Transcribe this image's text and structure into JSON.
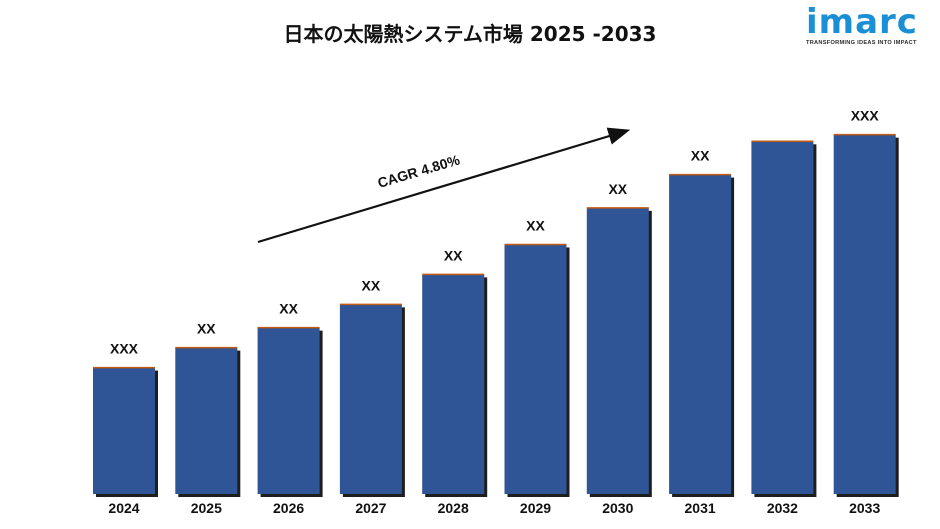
{
  "title": "日本の太陽熱システム市場 2025 -2033",
  "logo": {
    "word": "imarc",
    "tagline": "TRANSFORMING IDEAS INTO IMPACT"
  },
  "chart_data": {
    "type": "bar",
    "categories": [
      "2024",
      "2025",
      "2026",
      "2027",
      "2028",
      "2029",
      "2030",
      "2031",
      "2032",
      "2033"
    ],
    "values": [
      38,
      44,
      50,
      57,
      66,
      75,
      86,
      96,
      106,
      108
    ],
    "value_labels": [
      "XXX",
      "XX",
      "XX",
      "XX",
      "XX",
      "XX",
      "XX",
      "XX",
      "",
      "XXX"
    ],
    "annotation": "CAGR 4.80%",
    "ylim": [
      0,
      110
    ],
    "grid": false,
    "colors": {
      "bar": "#2f5597",
      "shadow": "#1e1e1e",
      "edge": "#c55a11"
    }
  }
}
